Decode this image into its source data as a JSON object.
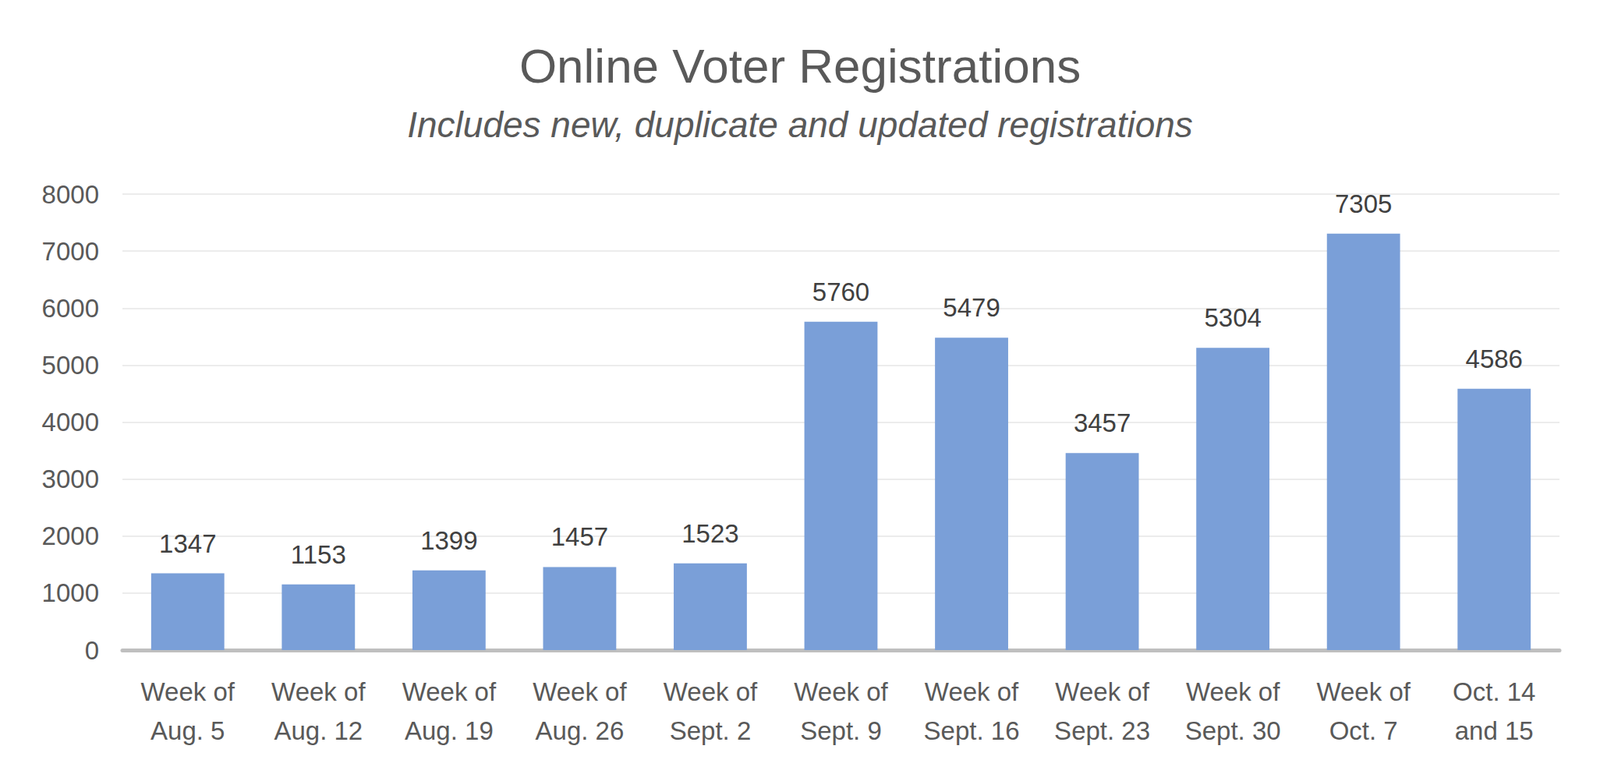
{
  "chart_data": {
    "type": "bar",
    "title": "Online Voter Registrations",
    "subtitle": "Includes new, duplicate and updated registrations",
    "categories": [
      "Week of Aug. 5",
      "Week of Aug. 12",
      "Week of Aug. 19",
      "Week of Aug. 26",
      "Week of Sept. 2",
      "Week of Sept. 9",
      "Week of Sept. 16",
      "Week of Sept. 23",
      "Week of Sept. 30",
      "Week of Oct. 7",
      "Oct. 14 and 15"
    ],
    "values": [
      1347,
      1153,
      1399,
      1457,
      1523,
      5760,
      5479,
      3457,
      5304,
      7305,
      4586
    ],
    "color": "#7a9fd8",
    "ylim": [
      0,
      8000
    ],
    "yticks": [
      0,
      1000,
      2000,
      3000,
      4000,
      5000,
      6000,
      7000,
      8000
    ],
    "grid": true,
    "data_labels": true
  }
}
